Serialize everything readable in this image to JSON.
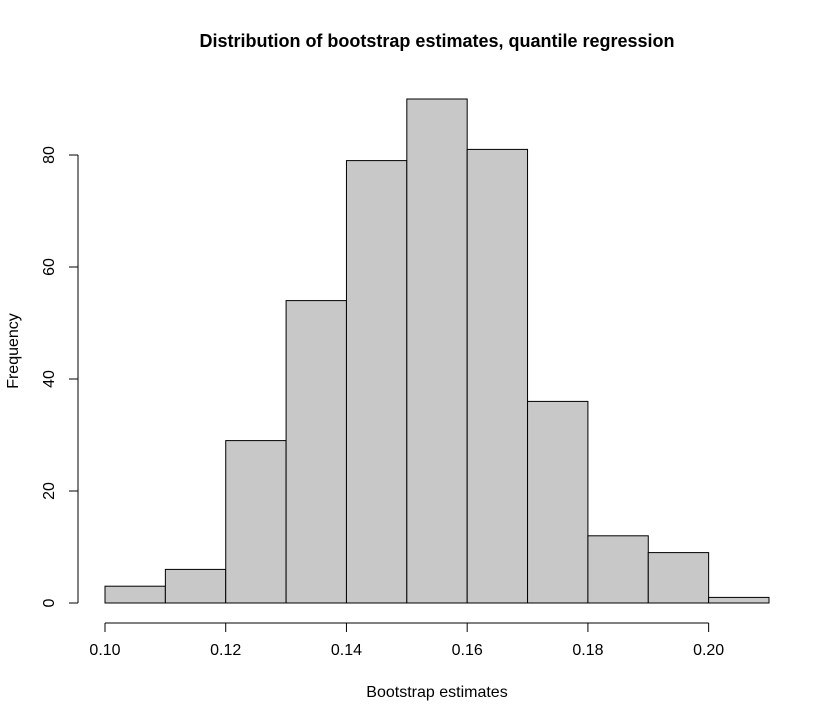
{
  "chart_data": {
    "type": "bar",
    "title": "Distribution of bootstrap estimates, quantile regression",
    "xlabel": "Bootstrap estimates",
    "ylabel": "Frequency",
    "bin_edges": [
      0.1,
      0.11,
      0.12,
      0.13,
      0.14,
      0.15,
      0.16,
      0.17,
      0.18,
      0.19,
      0.2,
      0.21
    ],
    "values": [
      3,
      6,
      29,
      54,
      79,
      90,
      81,
      36,
      12,
      9,
      1
    ],
    "x_ticks": [
      0.1,
      0.12,
      0.14,
      0.16,
      0.18,
      0.2
    ],
    "x_tick_labels": [
      "0.10",
      "0.12",
      "0.14",
      "0.16",
      "0.18",
      "0.20"
    ],
    "y_ticks": [
      0,
      20,
      40,
      60,
      80
    ],
    "y_tick_labels": [
      "0",
      "20",
      "40",
      "60",
      "80"
    ],
    "xlim": [
      0.1,
      0.21
    ],
    "ylim": [
      0,
      90
    ],
    "grid": false,
    "bar_color": "#c8c8c8",
    "edge_color": "#000000"
  }
}
